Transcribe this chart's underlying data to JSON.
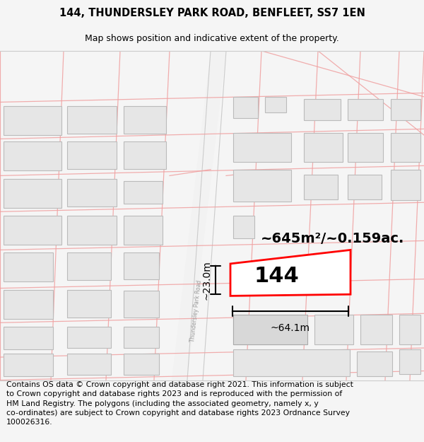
{
  "title": "144, THUNDERSLEY PARK ROAD, BENFLEET, SS7 1EN",
  "subtitle": "Map shows position and indicative extent of the property.",
  "footer": "Contains OS data © Crown copyright and database right 2021. This information is subject\nto Crown copyright and database rights 2023 and is reproduced with the permission of\nHM Land Registry. The polygons (including the associated geometry, namely x, y\nco-ordinates) are subject to Crown copyright and database rights 2023 Ordnance Survey\n100026316.",
  "area_label": "~645m²/~0.159ac.",
  "width_label": "~64.1m",
  "height_label": "~23.0m",
  "property_number": "144",
  "bg_color": "#f5f5f5",
  "map_bg": "#ffffff",
  "building_fill": "#e6e6e6",
  "building_edge": "#bbbbbb",
  "road_line_color": "#f0a0a0",
  "highlight_color": "#ff0000",
  "title_fontsize": 10.5,
  "subtitle_fontsize": 9,
  "footer_fontsize": 7.8,
  "label_fontsize": 14,
  "dim_fontsize": 10,
  "prop_num_fontsize": 22
}
